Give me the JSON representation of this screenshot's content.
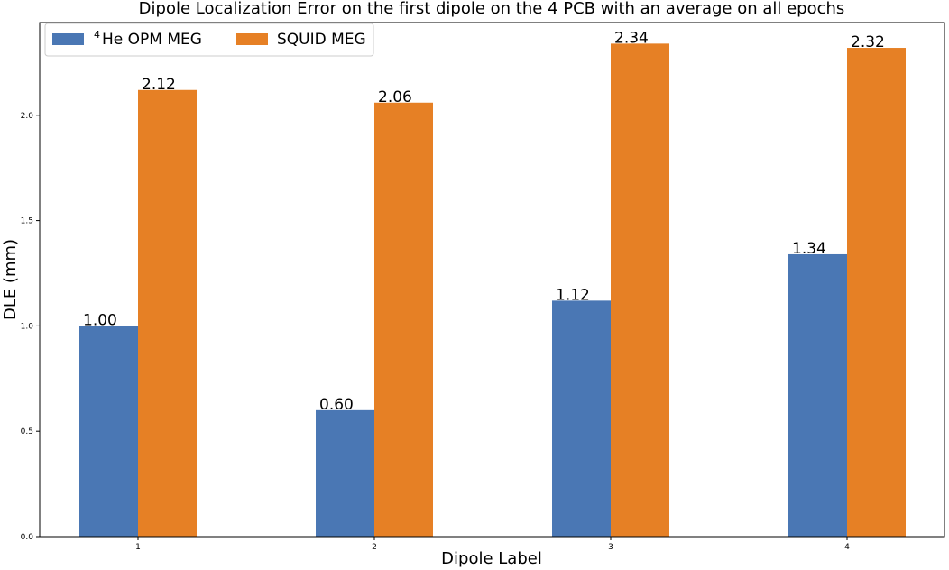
{
  "chart_data": {
    "type": "bar",
    "title": "Dipole Localization Error on the first dipole on the 4 PCB with an average on all epochs",
    "xlabel": "Dipole Label",
    "ylabel": "DLE (mm)",
    "categories": [
      "1",
      "2",
      "3",
      "4"
    ],
    "series": [
      {
        "name": "He OPM MEG",
        "name_superscript": "4",
        "color": "#4a77b4",
        "values": [
          1.0,
          0.6,
          1.12,
          1.34
        ],
        "value_labels": [
          "1.00",
          "0.60",
          "1.12",
          "1.34"
        ]
      },
      {
        "name": "SQUID MEG",
        "color": "#e68025",
        "values": [
          2.12,
          2.06,
          2.34,
          2.32
        ],
        "value_labels": [
          "2.12",
          "2.06",
          "2.34",
          "2.32"
        ]
      }
    ],
    "ylim": [
      0,
      2.44
    ],
    "yticks": [
      0.0,
      0.5,
      1.0,
      1.5,
      2.0
    ],
    "ytick_labels": [
      "0.0",
      "0.5",
      "1.0",
      "1.5",
      "2.0"
    ],
    "grid": false,
    "legend_position": "top-left",
    "legend_columns": 2
  }
}
